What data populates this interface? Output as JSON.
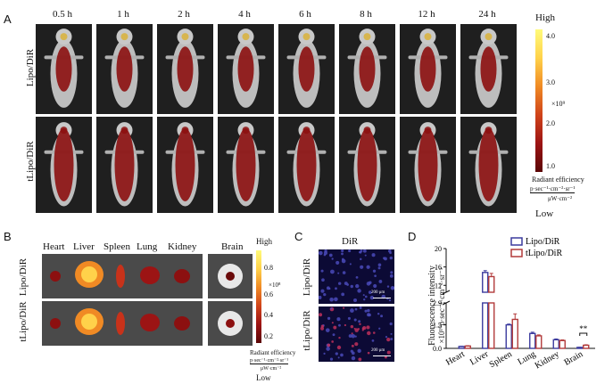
{
  "panel_a": {
    "label": "A",
    "timepoints": [
      "0.5 h",
      "1 h",
      "2 h",
      "4 h",
      "6 h",
      "8 h",
      "12 h",
      "24 h"
    ],
    "rows": [
      "Lipo/DiR",
      "tLipo/DiR"
    ],
    "colorbar": {
      "high": "High",
      "low": "Low",
      "ticks": [
        "4.0",
        "3.0",
        "2.0",
        "1.0"
      ],
      "multiplier": "×10⁹",
      "title": "Radiant efficiency",
      "unit_num": "p·sec⁻¹·cm⁻²·sr⁻¹",
      "unit_den": "μW·cm⁻²"
    }
  },
  "panel_b": {
    "label": "B",
    "organs": [
      "Heart",
      "Liver",
      "Spleen",
      "Lung",
      "Kidney"
    ],
    "brain": "Brain",
    "rows": [
      "Lipo/DiR",
      "tLipo/DiR"
    ],
    "colorbar": {
      "high": "High",
      "low": "Low",
      "ticks": [
        "0.8",
        "0.6",
        "0.4",
        "0.2"
      ],
      "multiplier": "×10⁸",
      "title": "Radiant efficiency",
      "unit_num": "p·sec⁻¹·cm⁻²·sr⁻¹",
      "unit_den": "μW·cm⁻²"
    }
  },
  "panel_c": {
    "label": "C",
    "title": "DiR",
    "rows": [
      "Lipo/DiR",
      "tLipo/DiR"
    ],
    "scale_bar": "200 μm"
  },
  "panel_d": {
    "label": "D",
    "sig": "**"
  },
  "chart_data": {
    "type": "bar",
    "categories": [
      "Heart",
      "Liver",
      "Spleen",
      "Lung",
      "Kidney",
      "Brain"
    ],
    "series": [
      {
        "name": "Lipo/DiR",
        "values": [
          0.12,
          14.8,
          1.5,
          0.95,
          0.55,
          0.06
        ],
        "errors": [
          0.02,
          0.4,
          0.05,
          0.08,
          0.05,
          0.01
        ],
        "color": "#3b3b9e"
      },
      {
        "name": "tLipo/DiR",
        "values": [
          0.15,
          13.9,
          1.85,
          0.8,
          0.5,
          0.2
        ],
        "errors": [
          0.02,
          0.7,
          0.35,
          0.06,
          0.04,
          0.03
        ],
        "color": "#b23a3a"
      }
    ],
    "ylabel_1": "Fluorescence intensity",
    "ylabel_2": "×10¹⁰p·sec⁻¹·cm⁻²·sr⁻¹",
    "lower_ticks": [
      "0.0",
      "1.5",
      "2.9"
    ],
    "upper_ticks": [
      "12",
      "16",
      "20"
    ],
    "ylim_lower": [
      0,
      2.9
    ],
    "ylim_upper": [
      10.5,
      20
    ],
    "axis_break": true,
    "legend_position": "top-right"
  }
}
